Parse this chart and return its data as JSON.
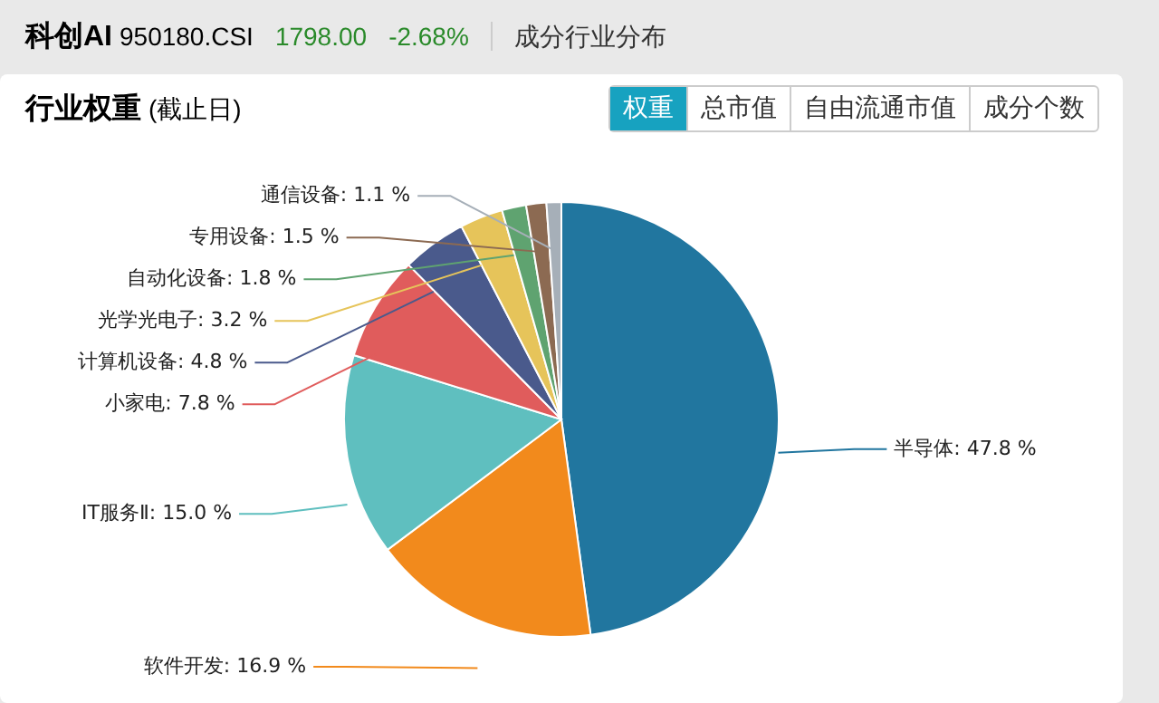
{
  "chart_data": {
    "type": "pie",
    "title": "行业权重",
    "subtitle": "(截止日)",
    "annotations": [
      "科创AI",
      "950180.CSI",
      "1798.00",
      "-2.68%",
      "成分行业分布",
      "权重",
      "总市值",
      "自由流通市值",
      "成分个数"
    ],
    "categories": [
      "半导体",
      "软件开发",
      "IT服务Ⅱ",
      "小家电",
      "计算机设备",
      "光学光电子",
      "自动化设备",
      "专用设备",
      "通信设备"
    ],
    "values": [
      47.8,
      16.9,
      15.0,
      7.8,
      4.8,
      3.2,
      1.8,
      1.5,
      1.1
    ],
    "value_labels": [
      "47.8 %",
      "16.9 %",
      "15.0 %",
      "7.8 %",
      "4.8 %",
      "3.2 %",
      "1.8 %",
      "1.5 %",
      "1.1 %"
    ],
    "colors": [
      "#21769f",
      "#f28a1c",
      "#5fbfbf",
      "#e05c5c",
      "#4a5a8c",
      "#e6c45a",
      "#5fa370",
      "#8c6a52",
      "#a6afb8"
    ]
  }
}
